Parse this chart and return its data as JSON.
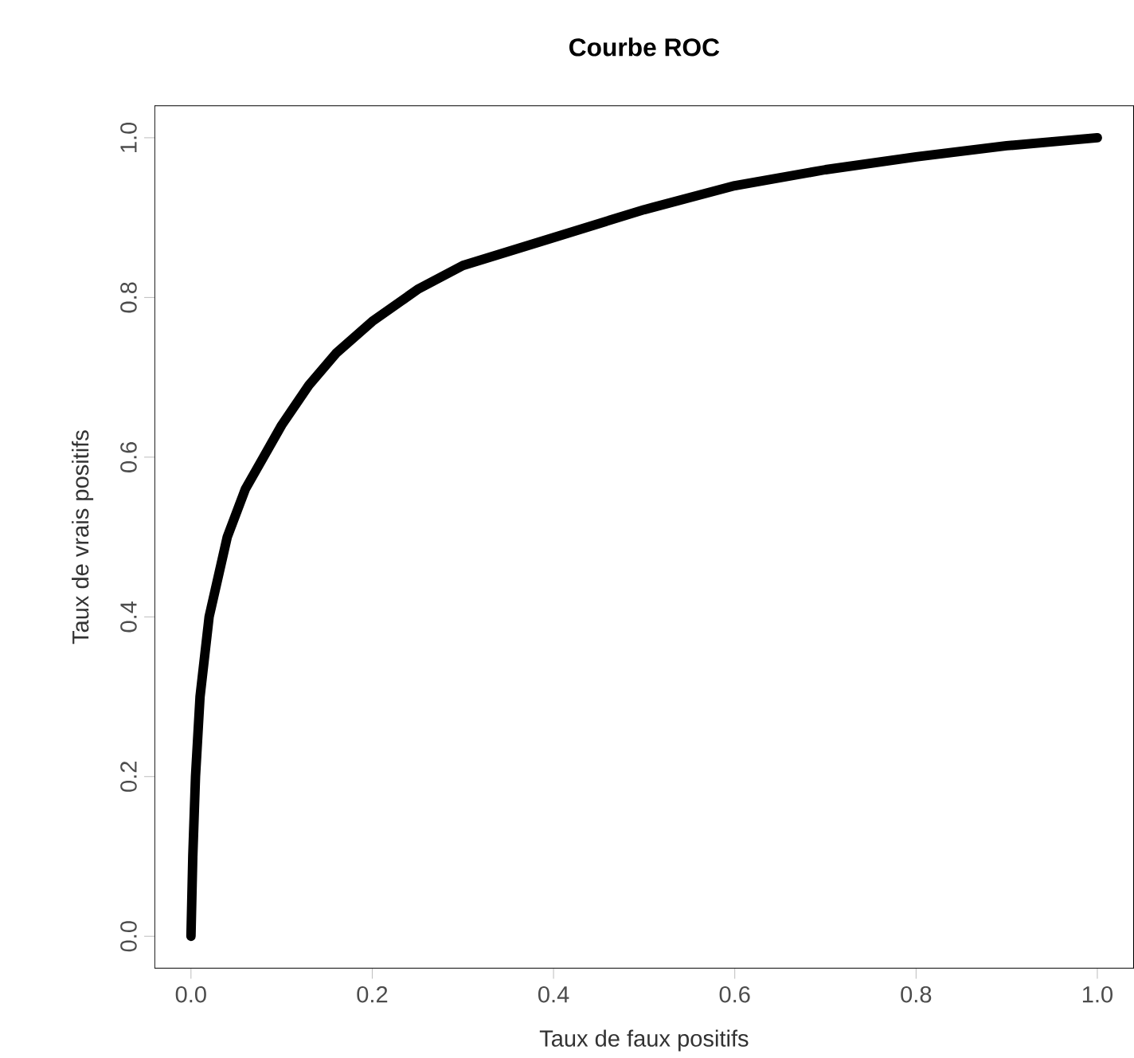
{
  "chart_data": {
    "type": "line",
    "title": "Courbe ROC",
    "xlabel": "Taux de faux positifs",
    "ylabel": "Taux de vrais positifs",
    "series": [
      {
        "color": "#000000",
        "x": [
          0,
          0.002,
          0.005,
          0.01,
          0.02,
          0.04,
          0.06,
          0.08,
          0.1,
          0.13,
          0.16,
          0.2,
          0.25,
          0.3,
          0.4,
          0.5,
          0.6,
          0.7,
          0.8,
          0.9,
          1.0
        ],
        "values": [
          0,
          0.1,
          0.2,
          0.3,
          0.4,
          0.5,
          0.56,
          0.6,
          0.64,
          0.69,
          0.73,
          0.77,
          0.81,
          0.84,
          0.875,
          0.91,
          0.94,
          0.96,
          0.976,
          0.99,
          1.0
        ]
      }
    ],
    "xlim": [
      -0.04,
      1.04
    ],
    "ylim": [
      -0.04,
      1.04
    ],
    "xticks": [
      {
        "value": 0,
        "label": "0.0"
      },
      0.2,
      0.4,
      0.6,
      0.8,
      {
        "value": 1,
        "label": "1.0"
      }
    ],
    "yticks": [
      {
        "value": 0,
        "label": "0.0"
      },
      0.2,
      0.4,
      0.6,
      0.8,
      {
        "value": 1,
        "label": "1.0"
      }
    ],
    "marker": "none",
    "line_style": "solid",
    "grid": false,
    "legend": false
  }
}
